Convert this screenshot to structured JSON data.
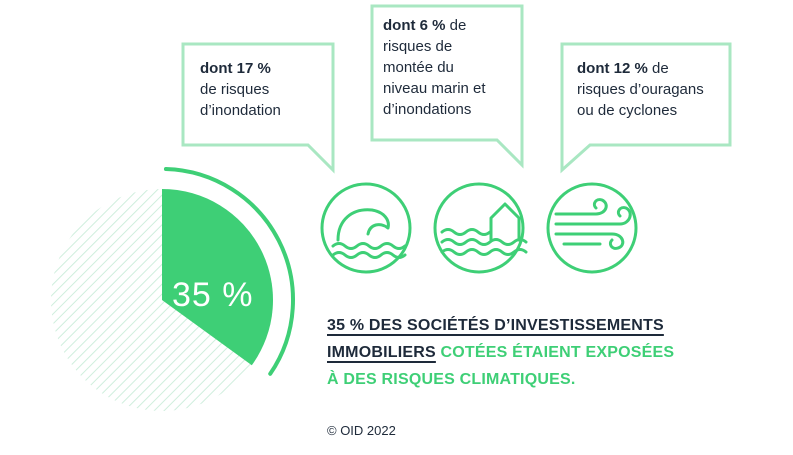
{
  "colors": {
    "accent": "#3ecf76",
    "accent_light": "#a9e7c2",
    "hatch": "#cfeedd",
    "text": "#1e2a3a"
  },
  "callouts": [
    {
      "bold": "dont 17 %",
      "lines": [
        "de risques",
        "d’inondation"
      ],
      "icon": "wave-icon"
    },
    {
      "bold": "dont 6 %",
      "first_suffix": " de",
      "lines": [
        "risques de",
        "montée du",
        "niveau marin et",
        "d’inondations"
      ],
      "icon": "house-water-icon"
    },
    {
      "bold": "dont 12 %",
      "first_suffix": " de",
      "lines": [
        "risques d’ouragans",
        "ou de cyclones"
      ],
      "icon": "wind-icon"
    }
  ],
  "pie_label": "35 %",
  "headline": {
    "part1": "35 % DES SOCIÉTÉS D’INVESTISSEMENTS",
    "part2": "IMMOBILIERS",
    "part3": " COTÉES ÉTAIENT EXPOSÉES",
    "part4": "À DES RISQUES CLIMATIQUES."
  },
  "credit": "© OID 2022",
  "chart_data": {
    "type": "pie",
    "title": "",
    "slices": [
      {
        "value": 35
      },
      {
        "value": 65
      }
    ]
  }
}
